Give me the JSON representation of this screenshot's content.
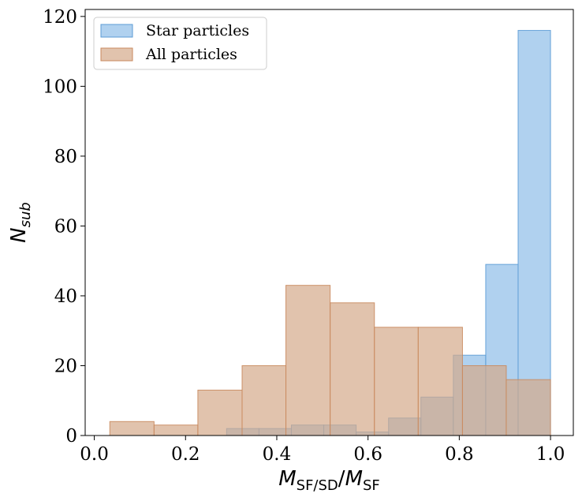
{
  "chart_data": {
    "type": "bar",
    "title": "",
    "xlabel": {
      "main": "M",
      "sub1": "SF/SD",
      "slash": "/",
      "main2": "M",
      "sub2": "SF"
    },
    "ylabel": {
      "main": "N",
      "sub": "sub"
    },
    "xlim": [
      -0.02,
      1.05
    ],
    "ylim": [
      0,
      122
    ],
    "xticks": [
      0.0,
      0.2,
      0.4,
      0.6,
      0.8,
      1.0
    ],
    "xtick_labels": [
      "0.0",
      "0.2",
      "0.4",
      "0.6",
      "0.8",
      "1.0"
    ],
    "yticks": [
      0,
      20,
      40,
      60,
      80,
      100,
      120
    ],
    "ytick_labels": [
      "0",
      "20",
      "40",
      "60",
      "80",
      "100",
      "120"
    ],
    "grid": false,
    "legend_position": "top-left",
    "series": [
      {
        "name": "Star particles",
        "color": "#8fbde8",
        "edge": "#5b9bd5",
        "bins": [
          {
            "x0": 0.29,
            "x1": 0.361,
            "count": 2
          },
          {
            "x0": 0.361,
            "x1": 0.432,
            "count": 2
          },
          {
            "x0": 0.432,
            "x1": 0.503,
            "count": 3
          },
          {
            "x0": 0.503,
            "x1": 0.574,
            "count": 3
          },
          {
            "x0": 0.574,
            "x1": 0.645,
            "count": 1
          },
          {
            "x0": 0.645,
            "x1": 0.716,
            "count": 5
          },
          {
            "x0": 0.716,
            "x1": 0.787,
            "count": 11
          },
          {
            "x0": 0.787,
            "x1": 0.858,
            "count": 23
          },
          {
            "x0": 0.858,
            "x1": 0.929,
            "count": 49
          },
          {
            "x0": 0.929,
            "x1": 1.0,
            "count": 116
          }
        ]
      },
      {
        "name": "All particles",
        "color": "#d4a98a",
        "edge": "#c98a5e",
        "bins": [
          {
            "x0": 0.034,
            "x1": 0.131,
            "count": 4
          },
          {
            "x0": 0.131,
            "x1": 0.227,
            "count": 3
          },
          {
            "x0": 0.227,
            "x1": 0.324,
            "count": 13
          },
          {
            "x0": 0.324,
            "x1": 0.42,
            "count": 20
          },
          {
            "x0": 0.42,
            "x1": 0.517,
            "count": 43
          },
          {
            "x0": 0.517,
            "x1": 0.614,
            "count": 38
          },
          {
            "x0": 0.614,
            "x1": 0.71,
            "count": 31
          },
          {
            "x0": 0.71,
            "x1": 0.807,
            "count": 31
          },
          {
            "x0": 0.807,
            "x1": 0.903,
            "count": 20
          },
          {
            "x0": 0.903,
            "x1": 1.0,
            "count": 16
          }
        ]
      }
    ]
  }
}
